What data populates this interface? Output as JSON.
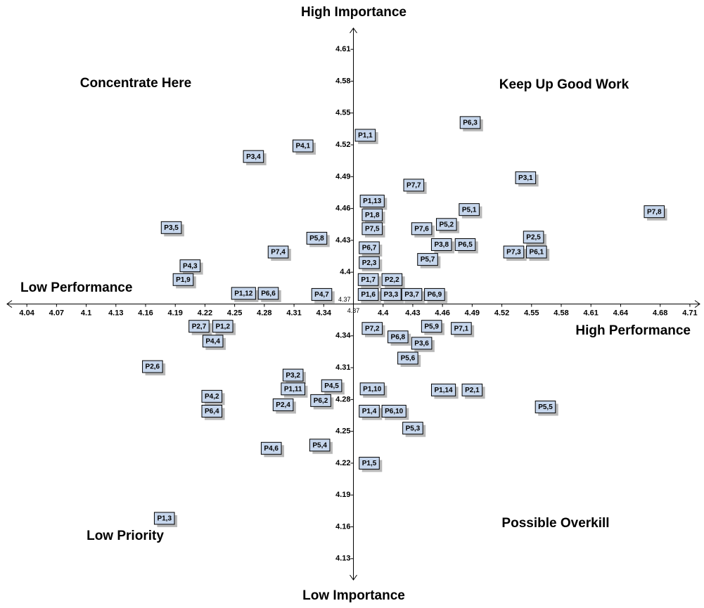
{
  "chart_data": {
    "type": "scatter",
    "title_top": "High Importance",
    "title_bottom": "Low Importance",
    "title_left": "Low Performance",
    "title_right": "High Performance",
    "quadrants": {
      "top_left": "Concentrate Here",
      "top_right": "Keep Up Good Work",
      "bottom_left": "Low Priority",
      "bottom_right": "Possible Overkill"
    },
    "xlim": [
      4.02,
      4.72
    ],
    "ylim": [
      4.11,
      4.63
    ],
    "axis_cross": {
      "x": 4.37,
      "y": 4.37
    },
    "xticks": [
      4.04,
      4.07,
      4.1,
      4.13,
      4.16,
      4.19,
      4.22,
      4.25,
      4.28,
      4.31,
      4.34,
      4.37,
      4.4,
      4.43,
      4.46,
      4.49,
      4.52,
      4.55,
      4.58,
      4.61,
      4.64,
      4.68,
      4.71
    ],
    "yticks": [
      4.13,
      4.16,
      4.19,
      4.22,
      4.25,
      4.28,
      4.31,
      4.34,
      4.37,
      4.4,
      4.43,
      4.46,
      4.49,
      4.52,
      4.55,
      4.58,
      4.61
    ],
    "color": "#c6d6ec",
    "labels": [
      "P6,3",
      "P1,1",
      "P4,1",
      "P3,4",
      "P3,1",
      "P7,7",
      "P1,13",
      "P5,1",
      "P7,8",
      "P1,8",
      "P5,2",
      "P3,5",
      "P7,6",
      "P7,5",
      "P2,5",
      "P5,8",
      "P3,8",
      "P6,5",
      "P6,7",
      "P7,3",
      "P6,1",
      "P7,4",
      "P5,7",
      "P2,3",
      "P4,3",
      "P1,9",
      "P1,7",
      "P2,2",
      "P1,12",
      "P6,6",
      "P4,7",
      "P1,6",
      "P3,3",
      "P3,7",
      "P6,9",
      "P5,9",
      "P7,1",
      "P7,2",
      "P2,7",
      "P1,2",
      "P6,8",
      "P4,4",
      "P3,6",
      "P5,6",
      "P2,6",
      "P3,2",
      "P4,5",
      "P1,10",
      "P1,14",
      "P2,1",
      "P1,11",
      "P4,2",
      "P6,2",
      "P2,4",
      "P5,5",
      "P1,4",
      "P6,10",
      "P6,4",
      "P5,3",
      "P4,6",
      "P5,4",
      "P1,5",
      "P1,3"
    ],
    "x": [
      4.488,
      4.382,
      4.319,
      4.269,
      4.544,
      4.431,
      4.389,
      4.487,
      4.674,
      4.389,
      4.464,
      4.186,
      4.439,
      4.389,
      4.552,
      4.333,
      4.459,
      4.483,
      4.386,
      4.532,
      4.555,
      4.294,
      4.445,
      4.386,
      4.205,
      4.198,
      4.385,
      4.409,
      4.259,
      4.284,
      4.338,
      4.385,
      4.408,
      4.429,
      4.452,
      4.449,
      4.479,
      4.389,
      4.214,
      4.238,
      4.415,
      4.228,
      4.439,
      4.425,
      4.167,
      4.309,
      4.348,
      4.389,
      4.461,
      4.49,
      4.309,
      4.227,
      4.337,
      4.299,
      4.564,
      4.386,
      4.411,
      4.227,
      4.43,
      4.287,
      4.336,
      4.386,
      4.179
    ],
    "y": [
      4.541,
      4.529,
      4.519,
      4.509,
      4.489,
      4.482,
      4.467,
      4.459,
      4.457,
      4.454,
      4.445,
      4.442,
      4.441,
      4.441,
      4.433,
      4.432,
      4.426,
      4.426,
      4.423,
      4.419,
      4.419,
      4.419,
      4.412,
      4.409,
      4.406,
      4.393,
      4.393,
      4.393,
      4.38,
      4.38,
      4.379,
      4.379,
      4.379,
      4.379,
      4.379,
      4.349,
      4.347,
      4.347,
      4.349,
      4.349,
      4.339,
      4.335,
      4.333,
      4.319,
      4.311,
      4.303,
      4.293,
      4.29,
      4.289,
      4.289,
      4.29,
      4.283,
      4.279,
      4.275,
      4.273,
      4.269,
      4.269,
      4.269,
      4.253,
      4.234,
      4.237,
      4.22,
      4.168
    ]
  }
}
